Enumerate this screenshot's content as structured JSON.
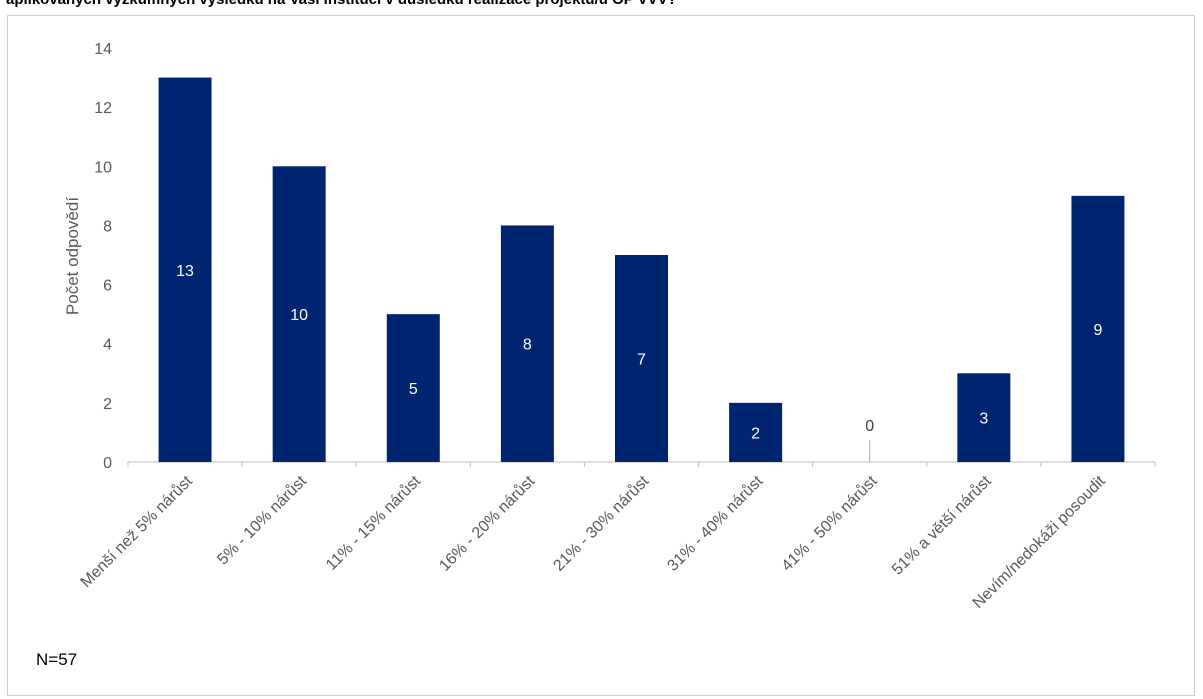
{
  "title": "aplikovaných výzkumných výsledků na Vaší instituci v důsledku realizace projektu/ů OP VVV?",
  "note": "N=57",
  "chart_data": {
    "type": "bar",
    "categories": [
      "Menší než 5% nárůst",
      "5% - 10% nárůst",
      "11% - 15% nárůst",
      "16% - 20% nárůst",
      "21% - 30% nárůst",
      "31% - 40% nárůst",
      "41% - 50% nárůst",
      "51% a větší nárůst",
      "Nevím/nedokáži posoudit"
    ],
    "values": [
      13,
      10,
      5,
      8,
      7,
      2,
      0,
      3,
      9
    ],
    "ylabel": "Počet odpovědí",
    "xlabel": "",
    "ylim": [
      0,
      14
    ],
    "yticks": [
      0,
      2,
      4,
      6,
      8,
      10,
      12,
      14
    ],
    "bar_color": "#002570",
    "grid": false
  }
}
